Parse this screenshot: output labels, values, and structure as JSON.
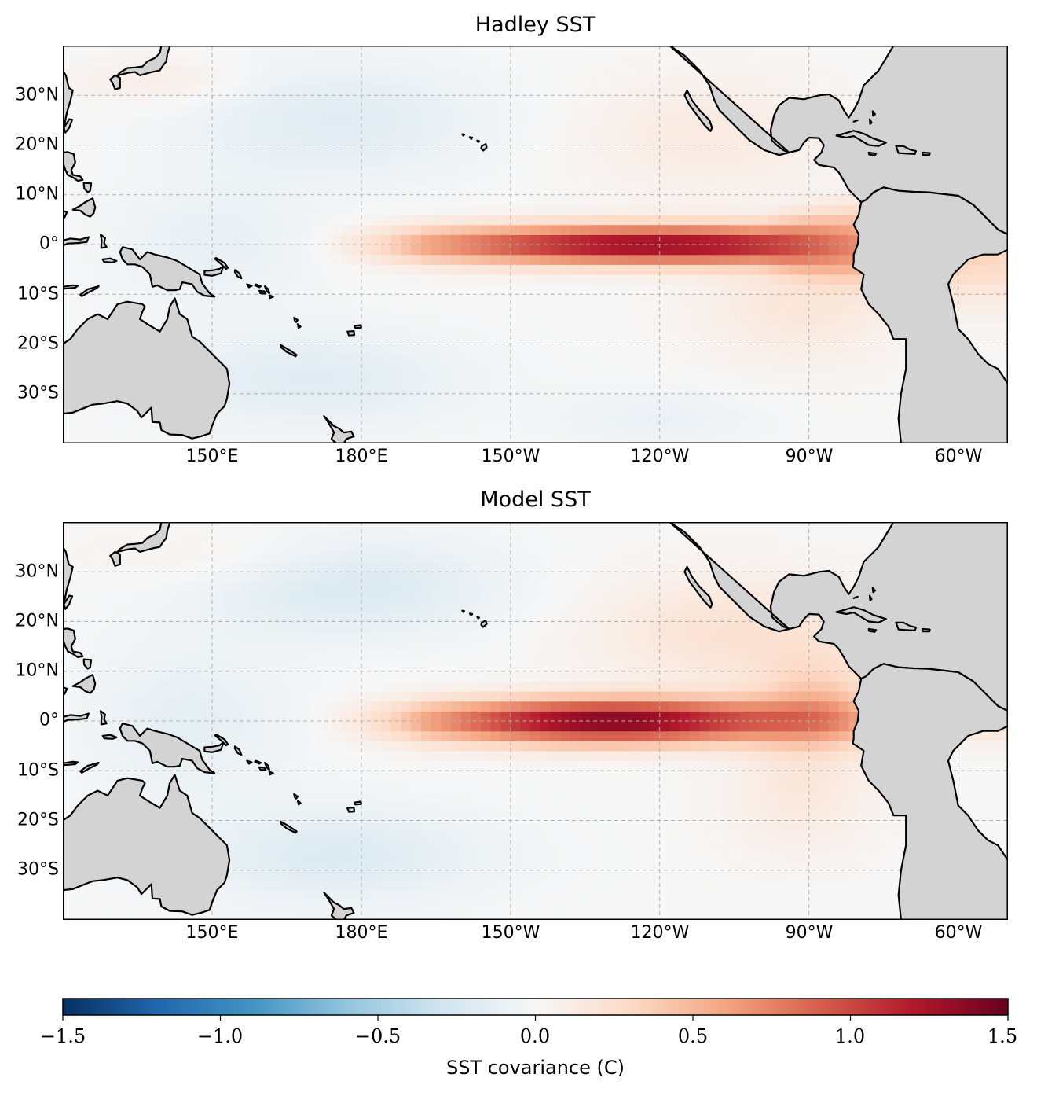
{
  "panels": [
    {
      "title": "Hadley SST",
      "field": "hadley"
    },
    {
      "title": "Model SST",
      "field": "model"
    }
  ],
  "lat_labels": [
    "30°N",
    "20°N",
    "10°N",
    "0°",
    "10°S",
    "20°S",
    "30°S"
  ],
  "lon_labels": [
    "150°E",
    "180°E",
    "150°W",
    "120°W",
    "90°W",
    "60°W"
  ],
  "map_extent": {
    "lon_min": 120,
    "lon_max": 310,
    "lat_min": -40,
    "lat_max": 40
  },
  "gridlines": true,
  "colormap": "RdBu_r",
  "colors": {
    "land": "#d3d3d3",
    "coast": "#000000",
    "grid": "#b0b0b0",
    "cmap_stops": [
      "#053061",
      "#2166ac",
      "#4393c3",
      "#92c5de",
      "#d1e5f0",
      "#f7f7f7",
      "#fddbc7",
      "#f4a582",
      "#d6604d",
      "#b2182b",
      "#67001f"
    ]
  },
  "colorbar": {
    "ticks": [
      "−1.5",
      "−1.0",
      "−0.5",
      "0.0",
      "0.5",
      "1.0",
      "1.5"
    ],
    "range": [
      -1.5,
      1.5
    ],
    "label": "SST covariance (C)"
  }
}
